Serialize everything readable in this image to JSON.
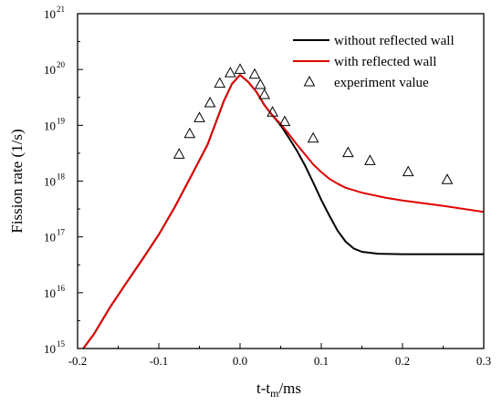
{
  "chart_data": {
    "type": "line",
    "xlabel": {
      "base": "t-t",
      "sub": "m",
      "rest": "/ms"
    },
    "ylabel": "Fission rate (1/s)",
    "xlim": [
      -0.2,
      0.3
    ],
    "ylim": [
      1000000000000000.0,
      1e+21
    ],
    "yscale": "log",
    "x_ticks": [
      "-0.2",
      "-0.1",
      "0.0",
      "0.1",
      "0.2",
      "0.3"
    ],
    "x_tick_values": [
      -0.2,
      -0.1,
      0.0,
      0.1,
      0.2,
      0.3
    ],
    "y_ticks": [
      {
        "base": "10",
        "exp": "15"
      },
      {
        "base": "10",
        "exp": "16"
      },
      {
        "base": "10",
        "exp": "17"
      },
      {
        "base": "10",
        "exp": "18"
      },
      {
        "base": "10",
        "exp": "19"
      },
      {
        "base": "10",
        "exp": "20"
      },
      {
        "base": "10",
        "exp": "21"
      }
    ],
    "y_tick_exponents": [
      15,
      16,
      17,
      18,
      19,
      20,
      21
    ],
    "legend_position": "top-right",
    "series": [
      {
        "name": "without reflected wall",
        "color": "#000000",
        "kind": "line",
        "x": [
          -0.193,
          -0.18,
          -0.16,
          -0.14,
          -0.12,
          -0.1,
          -0.08,
          -0.06,
          -0.04,
          -0.02,
          -0.01,
          0.0,
          0.01,
          0.02,
          0.03,
          0.04,
          0.05,
          0.06,
          0.07,
          0.08,
          0.09,
          0.1,
          0.11,
          0.12,
          0.13,
          0.14,
          0.15,
          0.17,
          0.2,
          0.25,
          0.3
        ],
        "y": [
          1000000000000000.0,
          1800000000000000.0,
          5500000000000000.0,
          1.5e+16,
          4e+16,
          1.1e+17,
          3.5e+17,
          1.25e+18,
          4.5e+18,
          2.7e+19,
          5.5e+19,
          8e+19,
          6e+19,
          4e+19,
          2.3e+19,
          1.5e+19,
          1e+19,
          6e+18,
          3.5e+18,
          1.9e+18,
          9.5e+17,
          4.6e+17,
          2.4e+17,
          1.3e+17,
          8.2e+16,
          6.2e+16,
          5.4e+16,
          5e+16,
          4.9e+16,
          4.9e+16,
          4.9e+16
        ]
      },
      {
        "name": "with reflected wall",
        "color": "#e00000",
        "kind": "line",
        "x": [
          -0.193,
          -0.18,
          -0.16,
          -0.14,
          -0.12,
          -0.1,
          -0.08,
          -0.06,
          -0.04,
          -0.02,
          -0.01,
          0.0,
          0.01,
          0.02,
          0.03,
          0.04,
          0.05,
          0.06,
          0.07,
          0.08,
          0.09,
          0.1,
          0.11,
          0.12,
          0.13,
          0.15,
          0.18,
          0.2,
          0.25,
          0.3
        ],
        "y": [
          1000000000000000.0,
          1800000000000000.0,
          5500000000000000.0,
          1.5e+16,
          4e+16,
          1.1e+17,
          3.5e+17,
          1.25e+18,
          4.5e+18,
          2.7e+19,
          5.5e+19,
          8e+19,
          6e+19,
          4e+19,
          2.3e+19,
          1.5e+19,
          1.05e+19,
          7e+18,
          4.5e+18,
          3e+18,
          2e+18,
          1.45e+18,
          1.1e+18,
          9e+17,
          7.6e+17,
          6.2e+17,
          5e+17,
          4.5e+17,
          3.6e+17,
          2.8e+17
        ]
      },
      {
        "name": "experiment value",
        "color": "#000000",
        "kind": "marker-triangle",
        "x": [
          -0.075,
          -0.062,
          -0.05,
          -0.037,
          -0.025,
          -0.012,
          0.0,
          0.018,
          0.025,
          0.03,
          0.04,
          0.055,
          0.09,
          0.133,
          0.16,
          0.207,
          0.255
        ],
        "y": [
          3e+18,
          7e+18,
          1.35e+19,
          2.5e+19,
          5.6e+19,
          8.6e+19,
          9.9e+19,
          8.1e+19,
          5.3e+19,
          3.5e+19,
          1.7e+19,
          1.15e+19,
          5.8e+18,
          3.2e+18,
          2.3e+18,
          1.45e+18,
          1.05e+18
        ]
      }
    ]
  }
}
